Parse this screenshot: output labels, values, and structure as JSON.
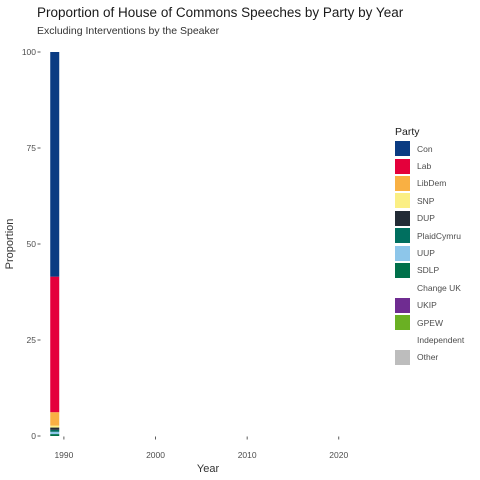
{
  "chart_data": {
    "type": "bar",
    "stacked": true,
    "title": "Proportion of House of Commons Speeches by Party by Year",
    "subtitle": "Excluding Interventions by the Speaker",
    "xlabel": "Year",
    "ylabel": "Proportion",
    "xlim": [
      1987.5,
      2024.5
    ],
    "ylim": [
      0,
      100
    ],
    "x_ticks": [
      1990,
      2000,
      2010,
      2020
    ],
    "y_ticks": [
      0,
      25,
      50,
      75,
      100
    ],
    "grid": false,
    "legend_title": "Party",
    "legend_position": "right",
    "x": [
      1989
    ],
    "series": [
      {
        "name": "Con",
        "color": "#0a3b82",
        "values": [
          58.5
        ]
      },
      {
        "name": "Lab",
        "color": "#e4003b",
        "values": [
          35.3
        ]
      },
      {
        "name": "LibDem",
        "color": "#f9b043",
        "values": [
          3.5
        ]
      },
      {
        "name": "SNP",
        "color": "#fbef84",
        "values": [
          0.5
        ]
      },
      {
        "name": "DUP",
        "color": "#222b35",
        "values": [
          0.6
        ]
      },
      {
        "name": "PlaidCymru",
        "color": "#006f5f",
        "values": [
          0.5
        ]
      },
      {
        "name": "UUP",
        "color": "#8dc6ea",
        "values": [
          0.6
        ]
      },
      {
        "name": "SDLP",
        "color": "#00704a",
        "values": [
          0.5
        ]
      },
      {
        "name": "Change UK",
        "color": "#ffffff",
        "values": [
          0
        ]
      },
      {
        "name": "UKIP",
        "color": "#6f2c91",
        "values": [
          0
        ]
      },
      {
        "name": "GPEW",
        "color": "#6ab023",
        "values": [
          0
        ]
      },
      {
        "name": "Independent",
        "color": "#ffffff",
        "values": [
          0
        ]
      },
      {
        "name": "Other",
        "color": "#bdbdbd",
        "values": [
          0
        ]
      }
    ]
  }
}
